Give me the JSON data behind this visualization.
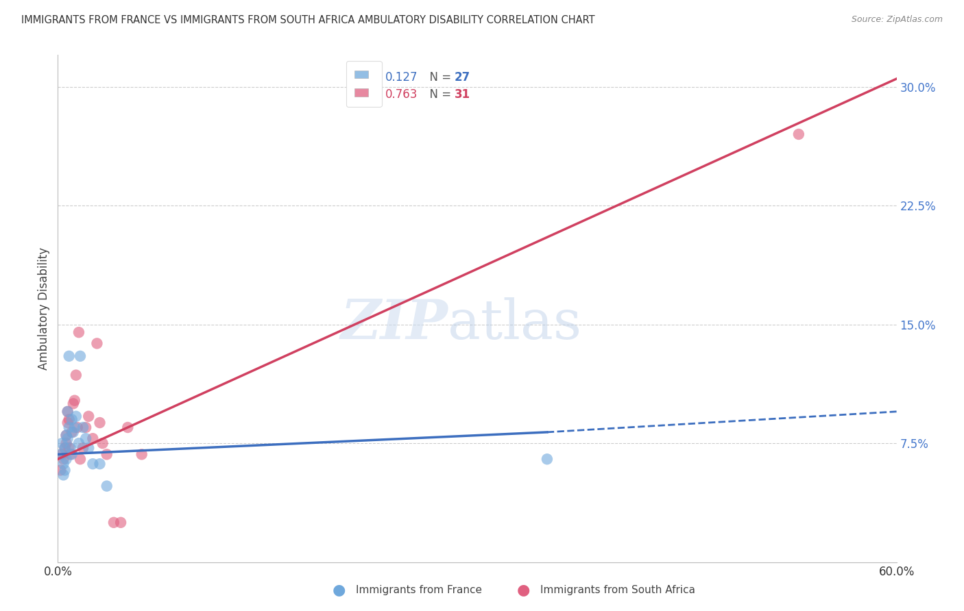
{
  "title": "IMMIGRANTS FROM FRANCE VS IMMIGRANTS FROM SOUTH AFRICA AMBULATORY DISABILITY CORRELATION CHART",
  "source": "Source: ZipAtlas.com",
  "ylabel": "Ambulatory Disability",
  "xlim": [
    0.0,
    0.6
  ],
  "ylim": [
    0.0,
    0.32
  ],
  "yticks": [
    0.075,
    0.15,
    0.225,
    0.3
  ],
  "ytick_labels": [
    "7.5%",
    "15.0%",
    "22.5%",
    "30.0%"
  ],
  "xticks": [
    0.0,
    0.1,
    0.2,
    0.3,
    0.4,
    0.5,
    0.6
  ],
  "france_R": 0.127,
  "france_N": 27,
  "sa_R": 0.763,
  "sa_N": 31,
  "france_color": "#6fa8dc",
  "sa_color": "#e06080",
  "france_line_color": "#3c6ebf",
  "sa_line_color": "#d04060",
  "legend_france_label": "Immigrants from France",
  "legend_sa_label": "Immigrants from South Africa",
  "background_color": "#ffffff",
  "grid_color": "#cccccc",
  "france_scatter_x": [
    0.002,
    0.003,
    0.004,
    0.004,
    0.005,
    0.005,
    0.006,
    0.006,
    0.007,
    0.007,
    0.008,
    0.008,
    0.009,
    0.01,
    0.01,
    0.011,
    0.012,
    0.013,
    0.015,
    0.016,
    0.018,
    0.02,
    0.022,
    0.025,
    0.03,
    0.035,
    0.35
  ],
  "france_scatter_y": [
    0.068,
    0.075,
    0.062,
    0.055,
    0.072,
    0.058,
    0.065,
    0.08,
    0.095,
    0.078,
    0.13,
    0.085,
    0.072,
    0.09,
    0.068,
    0.082,
    0.085,
    0.092,
    0.075,
    0.13,
    0.085,
    0.078,
    0.072,
    0.062,
    0.062,
    0.048,
    0.065
  ],
  "sa_scatter_x": [
    0.002,
    0.003,
    0.004,
    0.005,
    0.006,
    0.006,
    0.007,
    0.007,
    0.008,
    0.008,
    0.009,
    0.01,
    0.011,
    0.012,
    0.013,
    0.014,
    0.015,
    0.016,
    0.018,
    0.02,
    0.022,
    0.025,
    0.028,
    0.03,
    0.032,
    0.035,
    0.04,
    0.045,
    0.05,
    0.06,
    0.53
  ],
  "sa_scatter_y": [
    0.058,
    0.068,
    0.065,
    0.072,
    0.08,
    0.075,
    0.088,
    0.095,
    0.072,
    0.09,
    0.068,
    0.082,
    0.1,
    0.102,
    0.118,
    0.085,
    0.145,
    0.065,
    0.072,
    0.085,
    0.092,
    0.078,
    0.138,
    0.088,
    0.075,
    0.068,
    0.025,
    0.025,
    0.085,
    0.068,
    0.27
  ],
  "france_line_x0": 0.0,
  "france_line_x_solid_end": 0.35,
  "france_line_x1": 0.6,
  "france_line_y0": 0.068,
  "france_line_y_solid_end": 0.082,
  "france_line_y1": 0.095,
  "sa_line_x0": 0.0,
  "sa_line_x1": 0.6,
  "sa_line_y0": 0.065,
  "sa_line_y1": 0.305
}
